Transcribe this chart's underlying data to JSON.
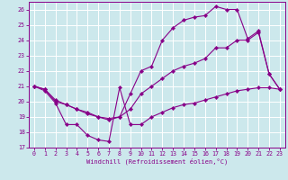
{
  "xlabel": "Windchill (Refroidissement éolien,°C)",
  "bg_color": "#cce8ec",
  "grid_color": "#ffffff",
  "line_color": "#880088",
  "xlim": [
    -0.5,
    23.5
  ],
  "ylim": [
    17,
    26.5
  ],
  "yticks": [
    17,
    18,
    19,
    20,
    21,
    22,
    23,
    24,
    25,
    26
  ],
  "xticks": [
    0,
    1,
    2,
    3,
    4,
    5,
    6,
    7,
    8,
    9,
    10,
    11,
    12,
    13,
    14,
    15,
    16,
    17,
    18,
    19,
    20,
    21,
    22,
    23
  ],
  "series_upper": [
    [
      0,
      21.0
    ],
    [
      1,
      20.8
    ],
    [
      2,
      20.0
    ],
    [
      3,
      19.8
    ],
    [
      4,
      19.5
    ],
    [
      5,
      19.2
    ],
    [
      6,
      19.0
    ],
    [
      7,
      18.8
    ],
    [
      8,
      19.0
    ],
    [
      9,
      20.5
    ],
    [
      10,
      22.0
    ],
    [
      11,
      22.3
    ],
    [
      12,
      24.0
    ],
    [
      13,
      24.8
    ],
    [
      14,
      25.3
    ],
    [
      15,
      25.5
    ],
    [
      16,
      25.6
    ],
    [
      17,
      26.2
    ],
    [
      18,
      26.0
    ],
    [
      19,
      26.0
    ],
    [
      20,
      24.1
    ],
    [
      21,
      24.6
    ],
    [
      22,
      21.8
    ],
    [
      23,
      20.8
    ]
  ],
  "series_mid": [
    [
      0,
      21.0
    ],
    [
      1,
      20.8
    ],
    [
      2,
      20.1
    ],
    [
      3,
      19.8
    ],
    [
      4,
      19.5
    ],
    [
      5,
      19.3
    ],
    [
      6,
      19.0
    ],
    [
      7,
      18.9
    ],
    [
      8,
      19.0
    ],
    [
      9,
      19.5
    ],
    [
      10,
      20.5
    ],
    [
      11,
      21.0
    ],
    [
      12,
      21.5
    ],
    [
      13,
      22.0
    ],
    [
      14,
      22.3
    ],
    [
      15,
      22.5
    ],
    [
      16,
      22.8
    ],
    [
      17,
      23.5
    ],
    [
      18,
      23.5
    ],
    [
      19,
      24.0
    ],
    [
      20,
      24.0
    ],
    [
      21,
      24.5
    ],
    [
      22,
      21.8
    ],
    [
      23,
      20.8
    ]
  ],
  "series_lower": [
    [
      0,
      21.0
    ],
    [
      1,
      20.7
    ],
    [
      2,
      19.9
    ],
    [
      3,
      18.5
    ],
    [
      4,
      18.5
    ],
    [
      5,
      17.8
    ],
    [
      6,
      17.5
    ],
    [
      7,
      17.4
    ],
    [
      8,
      20.9
    ],
    [
      9,
      18.5
    ],
    [
      10,
      18.5
    ],
    [
      11,
      19.0
    ],
    [
      12,
      19.3
    ],
    [
      13,
      19.6
    ],
    [
      14,
      19.8
    ],
    [
      15,
      19.9
    ],
    [
      16,
      20.1
    ],
    [
      17,
      20.3
    ],
    [
      18,
      20.5
    ],
    [
      19,
      20.7
    ],
    [
      20,
      20.8
    ],
    [
      21,
      20.9
    ],
    [
      22,
      20.9
    ],
    [
      23,
      20.8
    ]
  ]
}
